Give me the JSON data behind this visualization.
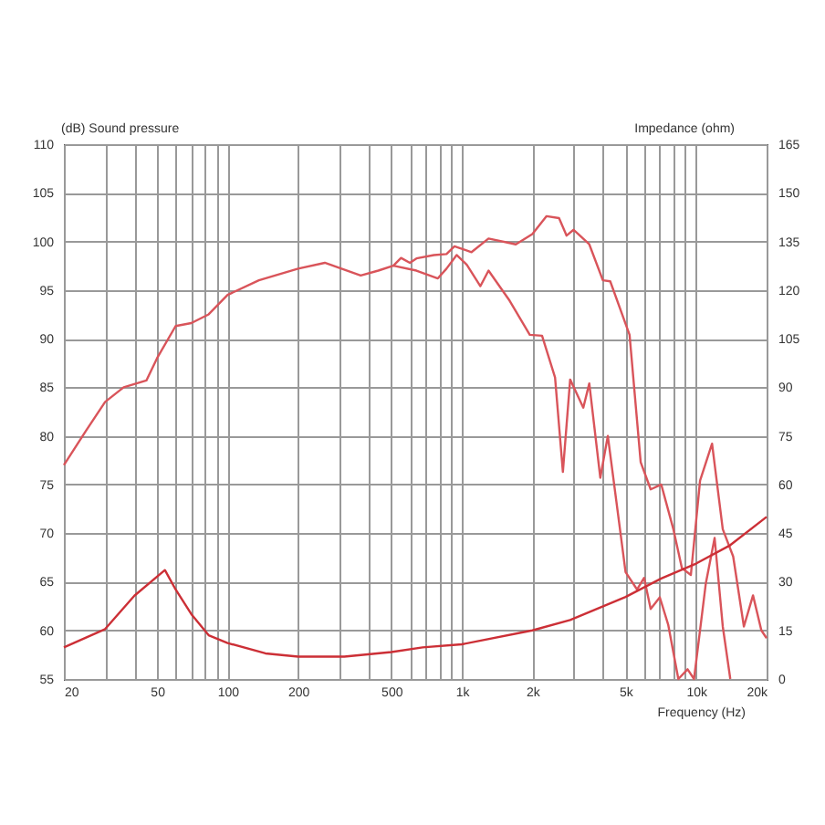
{
  "chart_data": {
    "type": "line",
    "xlabel": "Frequency (Hz)",
    "ylabel": "(dB) Sound pressure",
    "y2label": "Impedance (ohm)",
    "xlim": [
      20,
      20000
    ],
    "ylim": [
      55,
      110
    ],
    "y2lim": [
      0,
      165
    ],
    "log": "x",
    "grid": true,
    "legend": false,
    "marker": "none",
    "line_style": "solid",
    "xticks": [
      20,
      {
        "value": 30,
        "label": null
      },
      {
        "value": 40,
        "label": null
      },
      50,
      {
        "value": 60,
        "label": null
      },
      {
        "value": 70,
        "label": null
      },
      {
        "value": 80,
        "label": null
      },
      {
        "value": 90,
        "label": null
      },
      100,
      200,
      {
        "value": 300,
        "label": null
      },
      {
        "value": 400,
        "label": null
      },
      500,
      {
        "value": 600,
        "label": null
      },
      {
        "value": 700,
        "label": null
      },
      {
        "value": 800,
        "label": null
      },
      {
        "value": 900,
        "label": null
      },
      {
        "value": 1000,
        "label": "1k"
      },
      {
        "value": 2000,
        "label": "2k"
      },
      {
        "value": 3000,
        "label": null
      },
      {
        "value": 4000,
        "label": null
      },
      {
        "value": 5000,
        "label": "5k"
      },
      {
        "value": 6000,
        "label": null
      },
      {
        "value": 7000,
        "label": null
      },
      {
        "value": 8000,
        "label": null
      },
      {
        "value": 9000,
        "label": null
      },
      {
        "value": 10000,
        "label": "10k"
      },
      {
        "value": 20000,
        "label": "20k"
      }
    ],
    "yticks": [
      55,
      60,
      65,
      70,
      75,
      80,
      85,
      90,
      95,
      100,
      105,
      110
    ],
    "y2ticks": [
      0,
      15,
      30,
      45,
      60,
      75,
      90,
      105,
      120,
      135,
      150,
      165
    ],
    "series": [
      {
        "color": "#d9545a",
        "x": [
          20,
          24.8,
          30,
          36,
          45,
          50,
          60,
          70,
          83,
          100,
          136,
          200,
          260,
          370,
          440,
          510,
          550,
          600,
          640,
          760,
          860,
          930,
          1100,
          1300,
          1700,
          2000,
          2300,
          2600,
          2800,
          3000,
          3500,
          4000,
          4300,
          5200,
          5800,
          6400,
          7100,
          8000,
          8700,
          9500,
          10400,
          11700,
          13000,
          14400,
          16000,
          17500,
          19000,
          20000
        ],
        "values": [
          77,
          80.5,
          83.5,
          85,
          85.7,
          88,
          91.3,
          91.6,
          92.5,
          94.5,
          96,
          97.2,
          97.8,
          96.5,
          97,
          97.5,
          98.3,
          97.8,
          98.25,
          98.6,
          98.7,
          99.5,
          98.9,
          100.3,
          99.7,
          100.75,
          102.6,
          102.4,
          100.6,
          101.2,
          99.7,
          96,
          95.9,
          90.4,
          77.3,
          74.5,
          75,
          70.4,
          66.4,
          65.7,
          75.4,
          79.2,
          70.4,
          67.6,
          60.4,
          63.6,
          60,
          59.2
        ]
      },
      {
        "color": "#d9545a",
        "x": [
          510,
          640,
          790,
          860,
          950,
          1050,
          1200,
          1300,
          1600,
          1950,
          2200,
          2500,
          2700,
          2900,
          3300,
          3500,
          3900,
          4200,
          5000,
          5600,
          6000,
          6400,
          7000,
          7600,
          8400,
          9200,
          9800,
          11000,
          12000,
          13000,
          14000
        ],
        "values": [
          97.5,
          97,
          96.2,
          97.2,
          98.6,
          97.6,
          95.4,
          97,
          93.9,
          90.4,
          90.3,
          86,
          76.3,
          85.8,
          82.9,
          85.4,
          75.7,
          80,
          66,
          64.2,
          65.4,
          62.2,
          63.4,
          60.6,
          55,
          56,
          55,
          64.8,
          69.5,
          60.4,
          55
        ]
      },
      {
        "color": "#cc2f36",
        "axis": "y2",
        "x": [
          20,
          30,
          40,
          54,
          60,
          70,
          83,
          100,
          145,
          200,
          315,
          500,
          680,
          1000,
          2000,
          2900,
          5000,
          7100,
          10000,
          14000,
          20000
        ],
        "values": [
          9.75,
          15.4,
          25.7,
          33.6,
          27.6,
          20,
          13.5,
          11.1,
          7.9,
          6.9,
          6.9,
          8.3,
          9.75,
          10.7,
          15,
          18.2,
          25.3,
          31,
          35.6,
          41.3,
          50
        ]
      }
    ]
  }
}
